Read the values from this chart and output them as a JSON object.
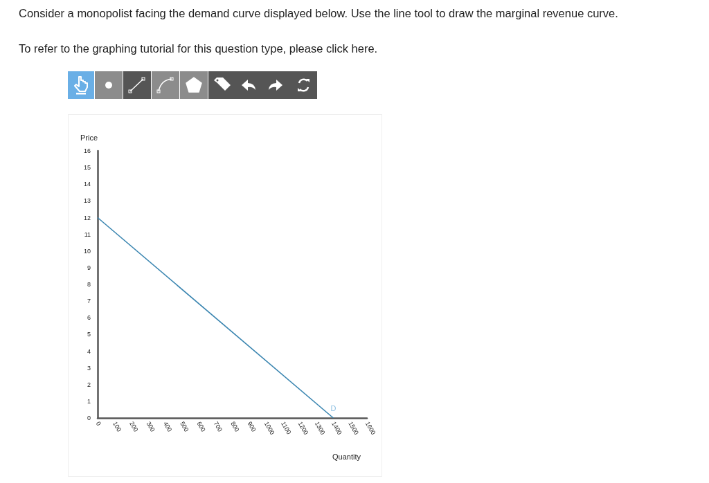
{
  "chart_data": {
    "type": "line",
    "title": "Consider a monopolist facing the demand curve displayed below. Use the line tool to draw the marginal revenue curve.",
    "subtitle": "To refer to the graphing tutorial for this question type, please click here.",
    "xlabel": "Quantity",
    "ylabel": "Price",
    "x": [
      0,
      1400
    ],
    "series": [
      {
        "color": "#3a85b0",
        "values": [
          12,
          0
        ]
      }
    ],
    "xlim": [
      0,
      1600
    ],
    "xticks": [
      0,
      100,
      200,
      300,
      400,
      500,
      600,
      700,
      800,
      900,
      1000,
      1100,
      1200,
      1300,
      1400,
      1500,
      1600
    ],
    "ylim": [
      0,
      16
    ],
    "yticks": [
      0,
      1,
      2,
      3,
      4,
      5,
      6,
      7,
      8,
      9,
      10,
      11,
      12,
      13,
      14,
      15,
      16
    ],
    "annotations": [
      "D"
    ],
    "grid": false,
    "marker": "none",
    "line_style": "solid"
  }
}
